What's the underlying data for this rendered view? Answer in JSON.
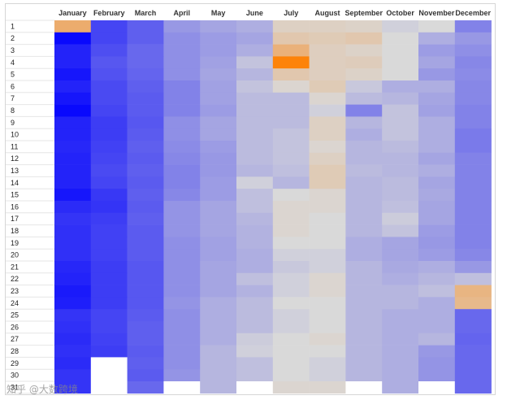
{
  "watermark": "知乎 @大数跨境",
  "chart_data": {
    "type": "heatmap",
    "title": "",
    "xlabel": "",
    "ylabel": "",
    "columns": [
      "January",
      "February",
      "March",
      "April",
      "May",
      "June",
      "July",
      "August",
      "September",
      "October",
      "November",
      "December"
    ],
    "rows": [
      "1",
      "2",
      "3",
      "4",
      "5",
      "6",
      "7",
      "8",
      "9",
      "10",
      "11",
      "12",
      "13",
      "14",
      "15",
      "16",
      "17",
      "18",
      "19",
      "20",
      "21",
      "22",
      "23",
      "24",
      "25",
      "26",
      "27",
      "28",
      "29",
      "30",
      "31"
    ],
    "days_in_month": [
      31,
      28,
      31,
      30,
      31,
      30,
      31,
      31,
      30,
      31,
      30,
      31
    ],
    "color_scale": {
      "low": "#0000ff",
      "mid": "#d9d9d9",
      "high": "#ff7f00",
      "range": [
        0,
        1
      ]
    },
    "values": [
      [
        0.75,
        0.16,
        0.22,
        0.35,
        0.38,
        0.4,
        0.55,
        0.55,
        0.54,
        0.48,
        0.5,
        0.3
      ],
      [
        0.02,
        0.16,
        0.22,
        0.33,
        0.36,
        0.38,
        0.6,
        0.58,
        0.6,
        0.5,
        0.4,
        0.35
      ],
      [
        0.08,
        0.18,
        0.24,
        0.33,
        0.36,
        0.4,
        0.72,
        0.56,
        0.54,
        0.5,
        0.36,
        0.33
      ],
      [
        0.08,
        0.2,
        0.24,
        0.33,
        0.37,
        0.45,
        0.98,
        0.56,
        0.57,
        0.5,
        0.38,
        0.31
      ],
      [
        0.05,
        0.19,
        0.23,
        0.33,
        0.38,
        0.42,
        0.6,
        0.56,
        0.54,
        0.5,
        0.35,
        0.32
      ],
      [
        0.08,
        0.17,
        0.22,
        0.3,
        0.37,
        0.45,
        0.52,
        0.58,
        0.46,
        0.4,
        0.4,
        0.31
      ],
      [
        0.05,
        0.17,
        0.21,
        0.3,
        0.37,
        0.43,
        0.43,
        0.52,
        0.43,
        0.42,
        0.38,
        0.31
      ],
      [
        0.02,
        0.16,
        0.21,
        0.3,
        0.36,
        0.43,
        0.43,
        0.48,
        0.3,
        0.45,
        0.37,
        0.3
      ],
      [
        0.08,
        0.14,
        0.2,
        0.33,
        0.38,
        0.43,
        0.43,
        0.55,
        0.42,
        0.45,
        0.4,
        0.3
      ],
      [
        0.08,
        0.14,
        0.21,
        0.33,
        0.38,
        0.43,
        0.45,
        0.55,
        0.4,
        0.45,
        0.4,
        0.28
      ],
      [
        0.09,
        0.15,
        0.22,
        0.32,
        0.36,
        0.43,
        0.45,
        0.52,
        0.42,
        0.43,
        0.4,
        0.28
      ],
      [
        0.08,
        0.16,
        0.21,
        0.31,
        0.35,
        0.43,
        0.45,
        0.55,
        0.42,
        0.42,
        0.38,
        0.3
      ],
      [
        0.08,
        0.17,
        0.22,
        0.3,
        0.35,
        0.42,
        0.44,
        0.58,
        0.43,
        0.42,
        0.4,
        0.3
      ],
      [
        0.08,
        0.16,
        0.21,
        0.3,
        0.36,
        0.48,
        0.42,
        0.58,
        0.42,
        0.43,
        0.38,
        0.3
      ],
      [
        0.05,
        0.13,
        0.22,
        0.31,
        0.36,
        0.44,
        0.5,
        0.52,
        0.42,
        0.43,
        0.39,
        0.3
      ],
      [
        0.1,
        0.12,
        0.21,
        0.34,
        0.38,
        0.44,
        0.52,
        0.52,
        0.42,
        0.44,
        0.38,
        0.3
      ],
      [
        0.12,
        0.14,
        0.22,
        0.34,
        0.38,
        0.42,
        0.52,
        0.5,
        0.42,
        0.47,
        0.38,
        0.3
      ],
      [
        0.11,
        0.15,
        0.21,
        0.34,
        0.38,
        0.41,
        0.52,
        0.5,
        0.42,
        0.45,
        0.36,
        0.3
      ],
      [
        0.11,
        0.15,
        0.21,
        0.33,
        0.37,
        0.41,
        0.5,
        0.5,
        0.4,
        0.38,
        0.35,
        0.3
      ],
      [
        0.11,
        0.15,
        0.21,
        0.33,
        0.37,
        0.4,
        0.48,
        0.48,
        0.4,
        0.38,
        0.36,
        0.31
      ],
      [
        0.09,
        0.14,
        0.2,
        0.33,
        0.38,
        0.4,
        0.46,
        0.48,
        0.42,
        0.39,
        0.4,
        0.35
      ],
      [
        0.08,
        0.14,
        0.2,
        0.33,
        0.38,
        0.44,
        0.48,
        0.52,
        0.42,
        0.4,
        0.42,
        0.44
      ],
      [
        0.06,
        0.14,
        0.2,
        0.33,
        0.38,
        0.41,
        0.48,
        0.52,
        0.42,
        0.42,
        0.44,
        0.7
      ],
      [
        0.07,
        0.14,
        0.2,
        0.34,
        0.4,
        0.43,
        0.5,
        0.5,
        0.42,
        0.42,
        0.4,
        0.68
      ],
      [
        0.12,
        0.16,
        0.21,
        0.33,
        0.4,
        0.43,
        0.48,
        0.5,
        0.42,
        0.4,
        0.4,
        0.24
      ],
      [
        0.11,
        0.16,
        0.22,
        0.33,
        0.4,
        0.43,
        0.48,
        0.5,
        0.42,
        0.4,
        0.4,
        0.24
      ],
      [
        0.1,
        0.15,
        0.22,
        0.33,
        0.4,
        0.47,
        0.5,
        0.52,
        0.42,
        0.4,
        0.42,
        0.23
      ],
      [
        0.11,
        0.14,
        0.21,
        0.33,
        0.42,
        0.48,
        0.5,
        0.5,
        0.42,
        0.4,
        0.35,
        0.24
      ],
      [
        0.1,
        null,
        0.22,
        0.33,
        0.42,
        0.44,
        0.5,
        0.48,
        0.42,
        0.4,
        0.34,
        0.24
      ],
      [
        0.12,
        null,
        0.21,
        0.34,
        0.42,
        0.44,
        0.5,
        0.48,
        0.42,
        0.4,
        0.34,
        0.24
      ],
      [
        0.12,
        null,
        0.24,
        null,
        0.42,
        null,
        0.52,
        0.52,
        null,
        0.4,
        null,
        0.24
      ]
    ]
  }
}
